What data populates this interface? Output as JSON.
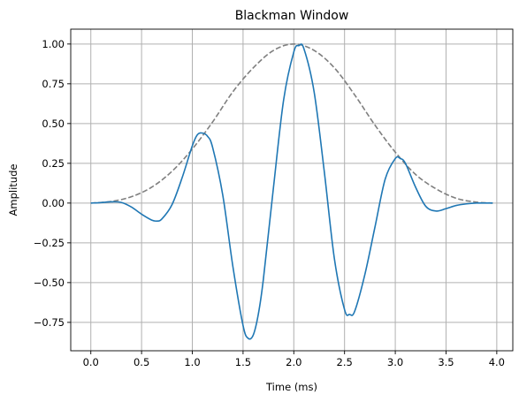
{
  "chart_data": {
    "type": "line",
    "title": "Blackman Window",
    "xlabel": "Time (ms)",
    "ylabel": "Amplitude",
    "xlim": [
      -0.198,
      4.158
    ],
    "ylim": [
      -0.9285,
      1.0935
    ],
    "xticks": [
      0.0,
      0.5,
      1.0,
      1.5,
      2.0,
      2.5,
      3.0,
      3.5,
      4.0
    ],
    "xtick_labels": [
      "0.0",
      "0.5",
      "1.0",
      "1.5",
      "2.0",
      "2.5",
      "3.0",
      "3.5",
      "4.0"
    ],
    "yticks": [
      -0.75,
      -0.5,
      -0.25,
      0.0,
      0.25,
      0.5,
      0.75,
      1.0
    ],
    "ytick_labels": [
      "−0.75",
      "−0.50",
      "−0.25",
      "0.00",
      "0.25",
      "0.50",
      "0.75",
      "1.00"
    ],
    "grid": true,
    "series": [
      {
        "style": "solid",
        "color": "#1f77b4",
        "x": [
          0.0,
          0.1,
          0.2,
          0.3,
          0.4,
          0.5,
          0.6,
          0.65,
          0.7,
          0.8,
          0.9,
          1.0,
          1.05,
          1.1,
          1.15,
          1.2,
          1.3,
          1.4,
          1.5,
          1.55,
          1.6,
          1.65,
          1.7,
          1.8,
          1.9,
          2.0,
          2.05,
          2.1,
          2.2,
          2.3,
          2.4,
          2.5,
          2.55,
          2.6,
          2.7,
          2.8,
          2.9,
          3.0,
          3.05,
          3.1,
          3.2,
          3.3,
          3.4,
          3.5,
          3.6,
          3.7,
          3.8,
          3.9,
          3.96
        ],
        "y": [
          0.0,
          0.003,
          0.008,
          0.004,
          -0.025,
          -0.07,
          -0.107,
          -0.113,
          -0.1,
          -0.01,
          0.16,
          0.36,
          0.43,
          0.44,
          0.42,
          0.35,
          0.05,
          -0.4,
          -0.77,
          -0.85,
          -0.83,
          -0.7,
          -0.48,
          0.1,
          0.65,
          0.95,
          0.99,
          0.97,
          0.7,
          0.2,
          -0.35,
          -0.67,
          -0.7,
          -0.68,
          -0.45,
          -0.15,
          0.15,
          0.28,
          0.28,
          0.25,
          0.1,
          -0.02,
          -0.05,
          -0.035,
          -0.015,
          -0.005,
          0.0,
          0.0,
          0.0
        ]
      },
      {
        "style": "dashed",
        "color": "#7f7f7f",
        "x": [
          0.0,
          0.2,
          0.4,
          0.6,
          0.8,
          1.0,
          1.2,
          1.4,
          1.6,
          1.8,
          2.0,
          2.2,
          2.4,
          2.6,
          2.8,
          3.0,
          3.2,
          3.4,
          3.6,
          3.8,
          3.96
        ],
        "y": [
          0.0,
          0.01,
          0.04,
          0.1,
          0.2,
          0.34,
          0.51,
          0.7,
          0.85,
          0.96,
          1.0,
          0.96,
          0.85,
          0.68,
          0.49,
          0.32,
          0.18,
          0.09,
          0.03,
          0.006,
          0.0
        ]
      }
    ]
  }
}
